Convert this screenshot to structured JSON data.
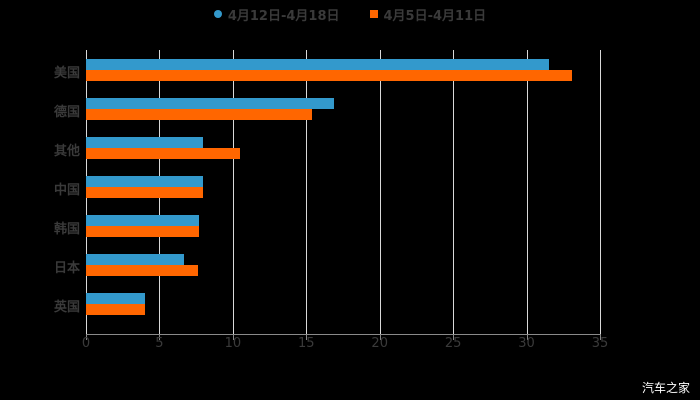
{
  "chart_data": {
    "type": "bar",
    "orientation": "horizontal",
    "title": "",
    "xlabel": "",
    "ylabel": "",
    "xlim": [
      0,
      35
    ],
    "xticks": [
      0,
      5,
      10,
      15,
      20,
      25,
      30,
      35
    ],
    "grid": true,
    "legend_position": "top",
    "categories": [
      "美国",
      "德国",
      "其他",
      "中国",
      "韩国",
      "日本",
      "英国"
    ],
    "series": [
      {
        "name": "4月12日-4月18日",
        "color": "#3399CC",
        "values": [
          31.5,
          16.9,
          8.0,
          8.0,
          7.7,
          6.7,
          4.0
        ]
      },
      {
        "name": "4月5日-4月11日",
        "color": "#FF6600",
        "values": [
          33.1,
          15.4,
          10.5,
          8.0,
          7.7,
          7.6,
          4.0
        ]
      }
    ]
  },
  "legend": {
    "items": [
      {
        "label": "4月12日-4月18日",
        "color": "#3399CC"
      },
      {
        "label": "4月5日-4月11日",
        "color": "#FF6600"
      }
    ]
  },
  "watermark": "汽车之家"
}
